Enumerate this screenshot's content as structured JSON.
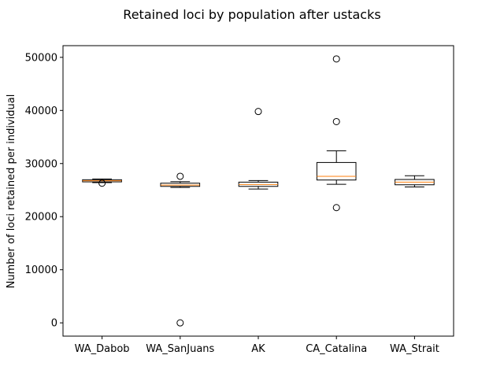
{
  "chart_data": {
    "type": "box",
    "title": "Retained loci by population after ustacks",
    "xlabel": "",
    "ylabel": "Number of loci retained per individual",
    "ylim": [
      -2500,
      52200
    ],
    "yticks": [
      0,
      10000,
      20000,
      30000,
      40000,
      50000
    ],
    "categories": [
      "WA_Dabob",
      "WA_SanJuans",
      "AK",
      "CA_Catalina",
      "WA_Strait"
    ],
    "boxes": [
      {
        "category": "WA_Dabob",
        "whislo": 26400,
        "q1": 26550,
        "median": 26750,
        "q3": 26950,
        "whishi": 27100,
        "fliers": [
          26300
        ]
      },
      {
        "category": "WA_SanJuans",
        "whislo": 25500,
        "q1": 25700,
        "median": 25950,
        "q3": 26300,
        "whishi": 26600,
        "fliers": [
          27600,
          0
        ]
      },
      {
        "category": "AK",
        "whislo": 25200,
        "q1": 25700,
        "median": 26050,
        "q3": 26500,
        "whishi": 26800,
        "fliers": [
          39800
        ]
      },
      {
        "category": "CA_Catalina",
        "whislo": 26100,
        "q1": 26900,
        "median": 27600,
        "q3": 30200,
        "whishi": 32400,
        "fliers": [
          49700,
          37900,
          21700
        ]
      },
      {
        "category": "WA_Strait",
        "whislo": 25600,
        "q1": 26000,
        "median": 26500,
        "q3": 27000,
        "whishi": 27700,
        "fliers": []
      }
    ]
  },
  "colors": {
    "median": "#ff7f0e",
    "box": "#000000",
    "background": "#ffffff"
  }
}
